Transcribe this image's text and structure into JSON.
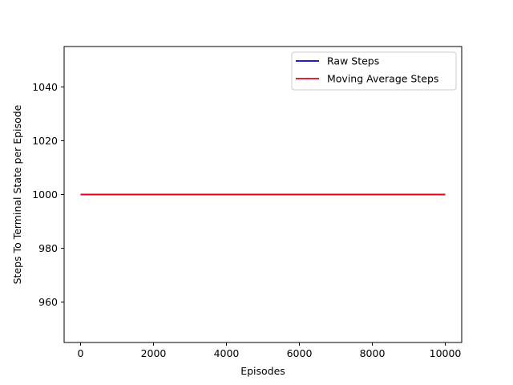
{
  "chart_data": {
    "type": "line",
    "title": "",
    "xlabel": "Episodes",
    "ylabel": "Steps To Terminal State per Episode",
    "xlim": [
      -450,
      10450
    ],
    "ylim": [
      945,
      1055
    ],
    "xticks": [
      0,
      2000,
      4000,
      6000,
      8000,
      10000
    ],
    "yticks": [
      960,
      980,
      1000,
      1020,
      1040
    ],
    "legend_position": "top-right",
    "grid": false,
    "series": [
      {
        "name": "Raw Steps",
        "color": "#0000cc",
        "x": [
          0,
          10000
        ],
        "y": [
          1000,
          1000
        ]
      },
      {
        "name": "Moving Average Steps",
        "color": "#e8001a",
        "x": [
          0,
          10000
        ],
        "y": [
          1000,
          1000
        ]
      }
    ]
  }
}
